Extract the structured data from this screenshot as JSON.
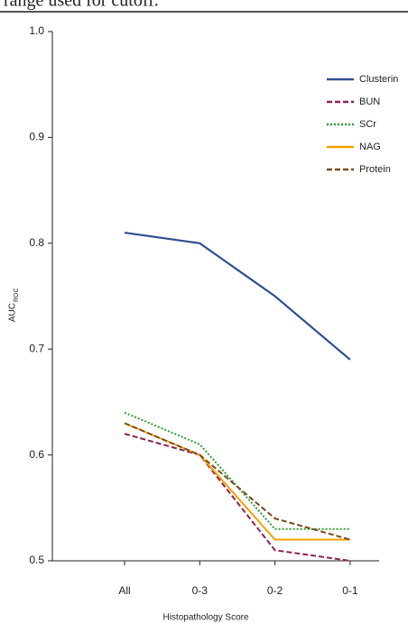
{
  "caption_fragment": "range used for cutoff.",
  "chart_data": {
    "type": "line",
    "x_label": "Histopathology Score",
    "y_label": "AUC",
    "y_label_subscript": "ROC",
    "categories": [
      "All",
      "0-3",
      "0-2",
      "0-1"
    ],
    "series": [
      {
        "name": "Clusterin",
        "color": "#2f4f8f",
        "dash": "solid",
        "values": [
          0.81,
          0.8,
          0.75,
          0.69
        ]
      },
      {
        "name": "BUN",
        "color": "#8b2252",
        "dash": "dashed",
        "values": [
          0.62,
          0.6,
          0.51,
          0.5
        ]
      },
      {
        "name": "SCr",
        "color": "#2e9e2e",
        "dash": "dotted",
        "values": [
          0.64,
          0.61,
          0.53,
          0.53
        ]
      },
      {
        "name": "NAG",
        "color": "#f5a000",
        "dash": "solid",
        "values": [
          0.63,
          0.6,
          0.52,
          0.52
        ]
      },
      {
        "name": "Protein",
        "color": "#7a4a1a",
        "dash": "dashed",
        "values": [
          0.63,
          0.6,
          0.54,
          0.52
        ]
      }
    ],
    "ylim": [
      0.5,
      1.0
    ],
    "yticks": [
      0.5,
      0.6,
      0.7,
      0.8,
      0.9,
      {
        "value": 1.0,
        "label": "1.0"
      }
    ],
    "legend": "top-right",
    "grid": false
  }
}
